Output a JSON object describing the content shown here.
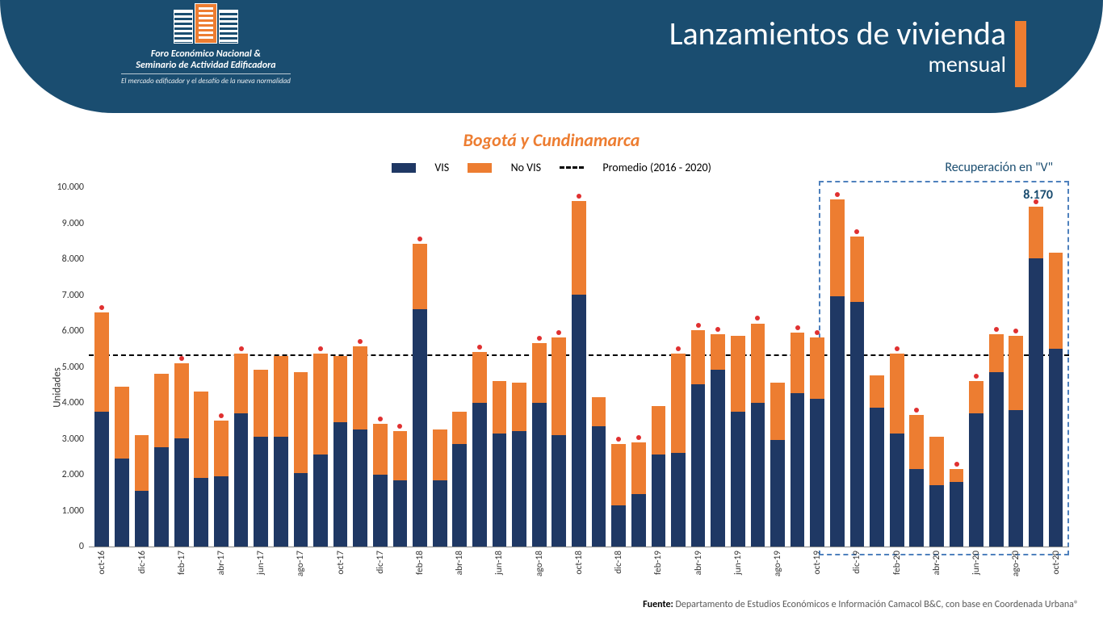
{
  "header": {
    "logo_line1": "Foro Económico Nacional &",
    "logo_line2": "Seminario de Actividad Edificadora",
    "logo_line3": "El mercado edificador y el desafío de la nueva normalidad",
    "title": "Lanzamientos de vivienda",
    "subtitle": "mensual"
  },
  "chart": {
    "type": "stacked-bar",
    "region_title": "Bogotá y Cundinamarca",
    "y_axis_title": "Unidades",
    "ymax": 10000,
    "ytick_step": 1000,
    "ytick_labels": [
      "0",
      "1.000",
      "2.000",
      "3.000",
      "4.000",
      "5.000",
      "6.000",
      "7.000",
      "8.000",
      "9.000",
      "10.000"
    ],
    "average_value": 5300,
    "colors": {
      "vis": "#1f3864",
      "novis": "#ed7d31",
      "tip": "#e03030",
      "avg_line": "#000000"
    },
    "legend": {
      "vis": "VIS",
      "novis": "No VIS",
      "avg": "Promedio (2016 - 2020)"
    },
    "annotation": {
      "recovery_label": "Recuperación en \"V\"",
      "highlight_value": "8.170",
      "box_start_index": 37
    },
    "categories": [
      "oct-16",
      "",
      "dic-16",
      "",
      "feb-17",
      "",
      "abr-17",
      "",
      "jun-17",
      "",
      "ago-17",
      "",
      "oct-17",
      "",
      "dic-17",
      "",
      "feb-18",
      "",
      "abr-18",
      "",
      "jun-18",
      "",
      "ago-18",
      "",
      "oct-18",
      "",
      "dic-18",
      "",
      "feb-19",
      "",
      "abr-19",
      "",
      "jun-19",
      "",
      "ago-19",
      "",
      "oct-19",
      "",
      "dic-19",
      "",
      "feb-20",
      "",
      "abr-20",
      "",
      "jun-20",
      "",
      "ago-20",
      "",
      "oct-20"
    ],
    "series": [
      {
        "vis": 3750,
        "novis": 2750,
        "tip": true
      },
      {
        "vis": 2450,
        "novis": 2000
      },
      {
        "vis": 1550,
        "novis": 1550
      },
      {
        "vis": 2750,
        "novis": 2050
      },
      {
        "vis": 3000,
        "novis": 2100,
        "tip": true
      },
      {
        "vis": 1900,
        "novis": 2400
      },
      {
        "vis": 1950,
        "novis": 1550,
        "tip": true
      },
      {
        "vis": 3700,
        "novis": 1650,
        "tip": true
      },
      {
        "vis": 3050,
        "novis": 1850
      },
      {
        "vis": 3050,
        "novis": 2250
      },
      {
        "vis": 2050,
        "novis": 2800
      },
      {
        "vis": 2550,
        "novis": 2800,
        "tip": true
      },
      {
        "vis": 3450,
        "novis": 1850
      },
      {
        "vis": 3250,
        "novis": 2300,
        "tip": true
      },
      {
        "vis": 2000,
        "novis": 1400,
        "tip": true
      },
      {
        "vis": 1850,
        "novis": 1350,
        "tip": true
      },
      {
        "vis": 6600,
        "novis": 1800,
        "tip": true
      },
      {
        "vis": 1850,
        "novis": 1400
      },
      {
        "vis": 2850,
        "novis": 900
      },
      {
        "vis": 4000,
        "novis": 1400,
        "tip": true
      },
      {
        "vis": 3150,
        "novis": 1450
      },
      {
        "vis": 3200,
        "novis": 1350
      },
      {
        "vis": 4000,
        "novis": 1650,
        "tip": true
      },
      {
        "vis": 3100,
        "novis": 2700,
        "tip": true
      },
      {
        "vis": 7000,
        "novis": 2600,
        "tip": true
      },
      {
        "vis": 3350,
        "novis": 800
      },
      {
        "vis": 1150,
        "novis": 1700,
        "tip": true
      },
      {
        "vis": 1450,
        "novis": 1450,
        "tip": true
      },
      {
        "vis": 2550,
        "novis": 1350
      },
      {
        "vis": 2600,
        "novis": 2750,
        "tip": true
      },
      {
        "vis": 4500,
        "novis": 1500,
        "tip": true
      },
      {
        "vis": 4900,
        "novis": 1000,
        "tip": true
      },
      {
        "vis": 3750,
        "novis": 2100
      },
      {
        "vis": 4000,
        "novis": 2200,
        "tip": true
      },
      {
        "vis": 2950,
        "novis": 1600
      },
      {
        "vis": 4250,
        "novis": 1700,
        "tip": true
      },
      {
        "vis": 4100,
        "novis": 1700,
        "tip": true
      },
      {
        "vis": 6950,
        "novis": 2700,
        "tip": true
      },
      {
        "vis": 6800,
        "novis": 1800,
        "tip": true
      },
      {
        "vis": 3850,
        "novis": 900
      },
      {
        "vis": 3150,
        "novis": 2200,
        "tip": true
      },
      {
        "vis": 2150,
        "novis": 1500,
        "tip": true
      },
      {
        "vis": 1700,
        "novis": 1350
      },
      {
        "vis": 1800,
        "novis": 350,
        "tip": true
      },
      {
        "vis": 3700,
        "novis": 900,
        "tip": true
      },
      {
        "vis": 4850,
        "novis": 1050,
        "tip": true
      },
      {
        "vis": 3800,
        "novis": 2050,
        "tip": true
      },
      {
        "vis": 8000,
        "novis": 1450,
        "tip": true
      },
      {
        "vis": 5500,
        "novis": 2670
      }
    ]
  },
  "footer": {
    "label": "Fuente:",
    "text": " Departamento de Estudios Económicos e Información Camacol B&C, con base en Coordenada Urbana®"
  }
}
